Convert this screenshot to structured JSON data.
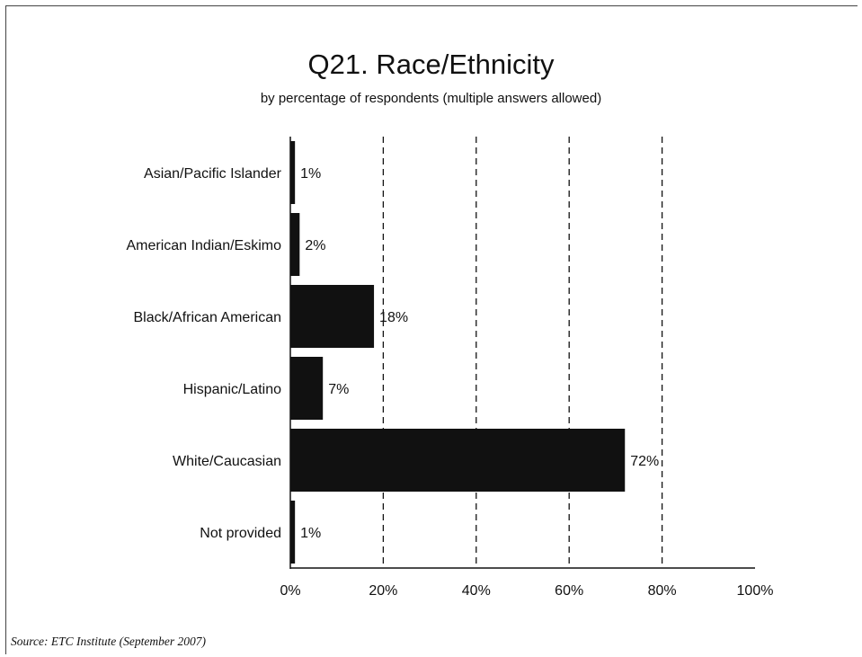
{
  "chart_data": {
    "type": "bar",
    "orientation": "horizontal",
    "title": "Q21. Race/Ethnicity",
    "subtitle": "by percentage of respondents (multiple answers allowed)",
    "categories": [
      "Asian/Pacific Islander",
      "American Indian/Eskimo",
      "Black/African American",
      "Hispanic/Latino",
      "White/Caucasian",
      "Not provided"
    ],
    "values": [
      1,
      2,
      18,
      7,
      72,
      1
    ],
    "value_labels": [
      "1%",
      "2%",
      "18%",
      "7%",
      "72%",
      "1%"
    ],
    "xlim": [
      0,
      100
    ],
    "xticks": [
      0,
      20,
      40,
      60,
      80,
      100
    ],
    "xtick_labels": [
      "0%",
      "20%",
      "40%",
      "60%",
      "80%",
      "100%"
    ],
    "grid": "vertical dashed",
    "bar_color": "#111111",
    "source": "Source:  ETC Institute (September 2007)"
  }
}
